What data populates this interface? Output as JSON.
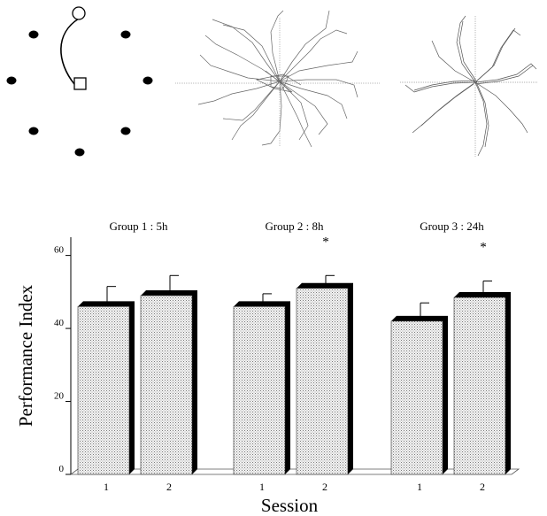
{
  "chart_data": {
    "type": "bar",
    "title": "",
    "xlabel": "Session",
    "ylabel": "Performance Index",
    "ylim": [
      0,
      65
    ],
    "yticks": [
      0,
      20,
      40,
      60
    ],
    "grid": false,
    "groups": [
      {
        "label": "Group 1 : 5h",
        "sessions": [
          {
            "label": "1",
            "value": 46,
            "error": 5.5,
            "significant": false
          },
          {
            "label": "2",
            "value": 49,
            "error": 5.5,
            "significant": false
          }
        ]
      },
      {
        "label": "Group 2 : 8h",
        "sessions": [
          {
            "label": "1",
            "value": 46,
            "error": 3.5,
            "significant": false
          },
          {
            "label": "2",
            "value": 51,
            "error": 3.5,
            "significant": true
          }
        ]
      },
      {
        "label": "Group 3 : 24h",
        "sessions": [
          {
            "label": "1",
            "value": 42,
            "error": 5,
            "significant": false
          },
          {
            "label": "2",
            "value": 48.5,
            "error": 4.5,
            "significant": true
          }
        ]
      }
    ],
    "significance_marker": "*",
    "bar_color": "#dcdcdc",
    "shadow_color": "#000000"
  },
  "panels": {
    "maze_diagram": {
      "description_icon": "radial-arm-maze-schematic"
    },
    "trajectories_before": {
      "description_icon": "swim-paths-scattered"
    },
    "trajectories_after": {
      "description_icon": "swim-paths-spiral"
    }
  }
}
